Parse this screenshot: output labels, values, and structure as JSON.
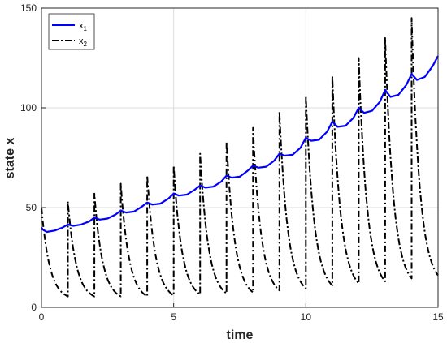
{
  "chart_data": {
    "type": "line",
    "xlabel": "time",
    "ylabel": "state x",
    "xlim": [
      0,
      15
    ],
    "ylim": [
      0,
      150
    ],
    "xticks": [
      0,
      5,
      10,
      15
    ],
    "yticks": [
      0,
      50,
      100,
      150
    ],
    "grid": true,
    "legend_position": "top-left",
    "series": [
      {
        "name": "x1",
        "legend_main": "x",
        "legend_sub": "1",
        "color": "#0000ff",
        "style": "solid",
        "x": [
          0,
          0.05,
          0.2,
          0.5,
          0.8,
          1.0,
          1.2,
          1.5,
          1.8,
          2.0,
          2.2,
          2.5,
          2.8,
          3.0,
          3.2,
          3.5,
          3.8,
          4.0,
          4.2,
          4.5,
          4.8,
          5.0,
          5.2,
          5.5,
          5.8,
          6.0,
          6.2,
          6.5,
          6.8,
          7.0,
          7.2,
          7.5,
          7.8,
          8.0,
          8.2,
          8.5,
          8.8,
          9.0,
          9.2,
          9.5,
          9.8,
          10.0,
          10.2,
          10.5,
          10.8,
          11.0,
          11.2,
          11.5,
          11.8,
          12.0,
          12.2,
          12.5,
          12.8,
          13.0,
          13.2,
          13.5,
          13.8,
          14.0,
          14.2,
          14.5,
          14.8,
          15.0
        ],
        "y": [
          40,
          39,
          37.8,
          38.5,
          40,
          41.5,
          40.8,
          41.5,
          43,
          45,
          44,
          44.5,
          46.5,
          48.5,
          47.5,
          48,
          50.5,
          52.5,
          51.5,
          52,
          54.5,
          57,
          56,
          56.5,
          59,
          61,
          60,
          60.5,
          63,
          66,
          65,
          65.5,
          68.5,
          71,
          70,
          70.5,
          73.5,
          77,
          76,
          76.5,
          80,
          85,
          83.5,
          84,
          88,
          93,
          90.5,
          91,
          95,
          100,
          97.5,
          98.5,
          103,
          109,
          105.5,
          106.5,
          111.5,
          117,
          114,
          115.5,
          121,
          126
        ]
      },
      {
        "name": "x2",
        "legend_main": "x",
        "legend_sub": "2",
        "color": "#000000",
        "style": "dashdot",
        "peaks": [
          50,
          53,
          57,
          62,
          66,
          71,
          77,
          83,
          90,
          98,
          106,
          116,
          125,
          135,
          145
        ],
        "troughs": [
          5.5,
          5.5,
          5.5,
          5.5,
          6,
          6.5,
          7,
          7.5,
          8.5,
          9.5,
          11,
          12,
          13,
          14.5,
          16
        ]
      }
    ]
  }
}
